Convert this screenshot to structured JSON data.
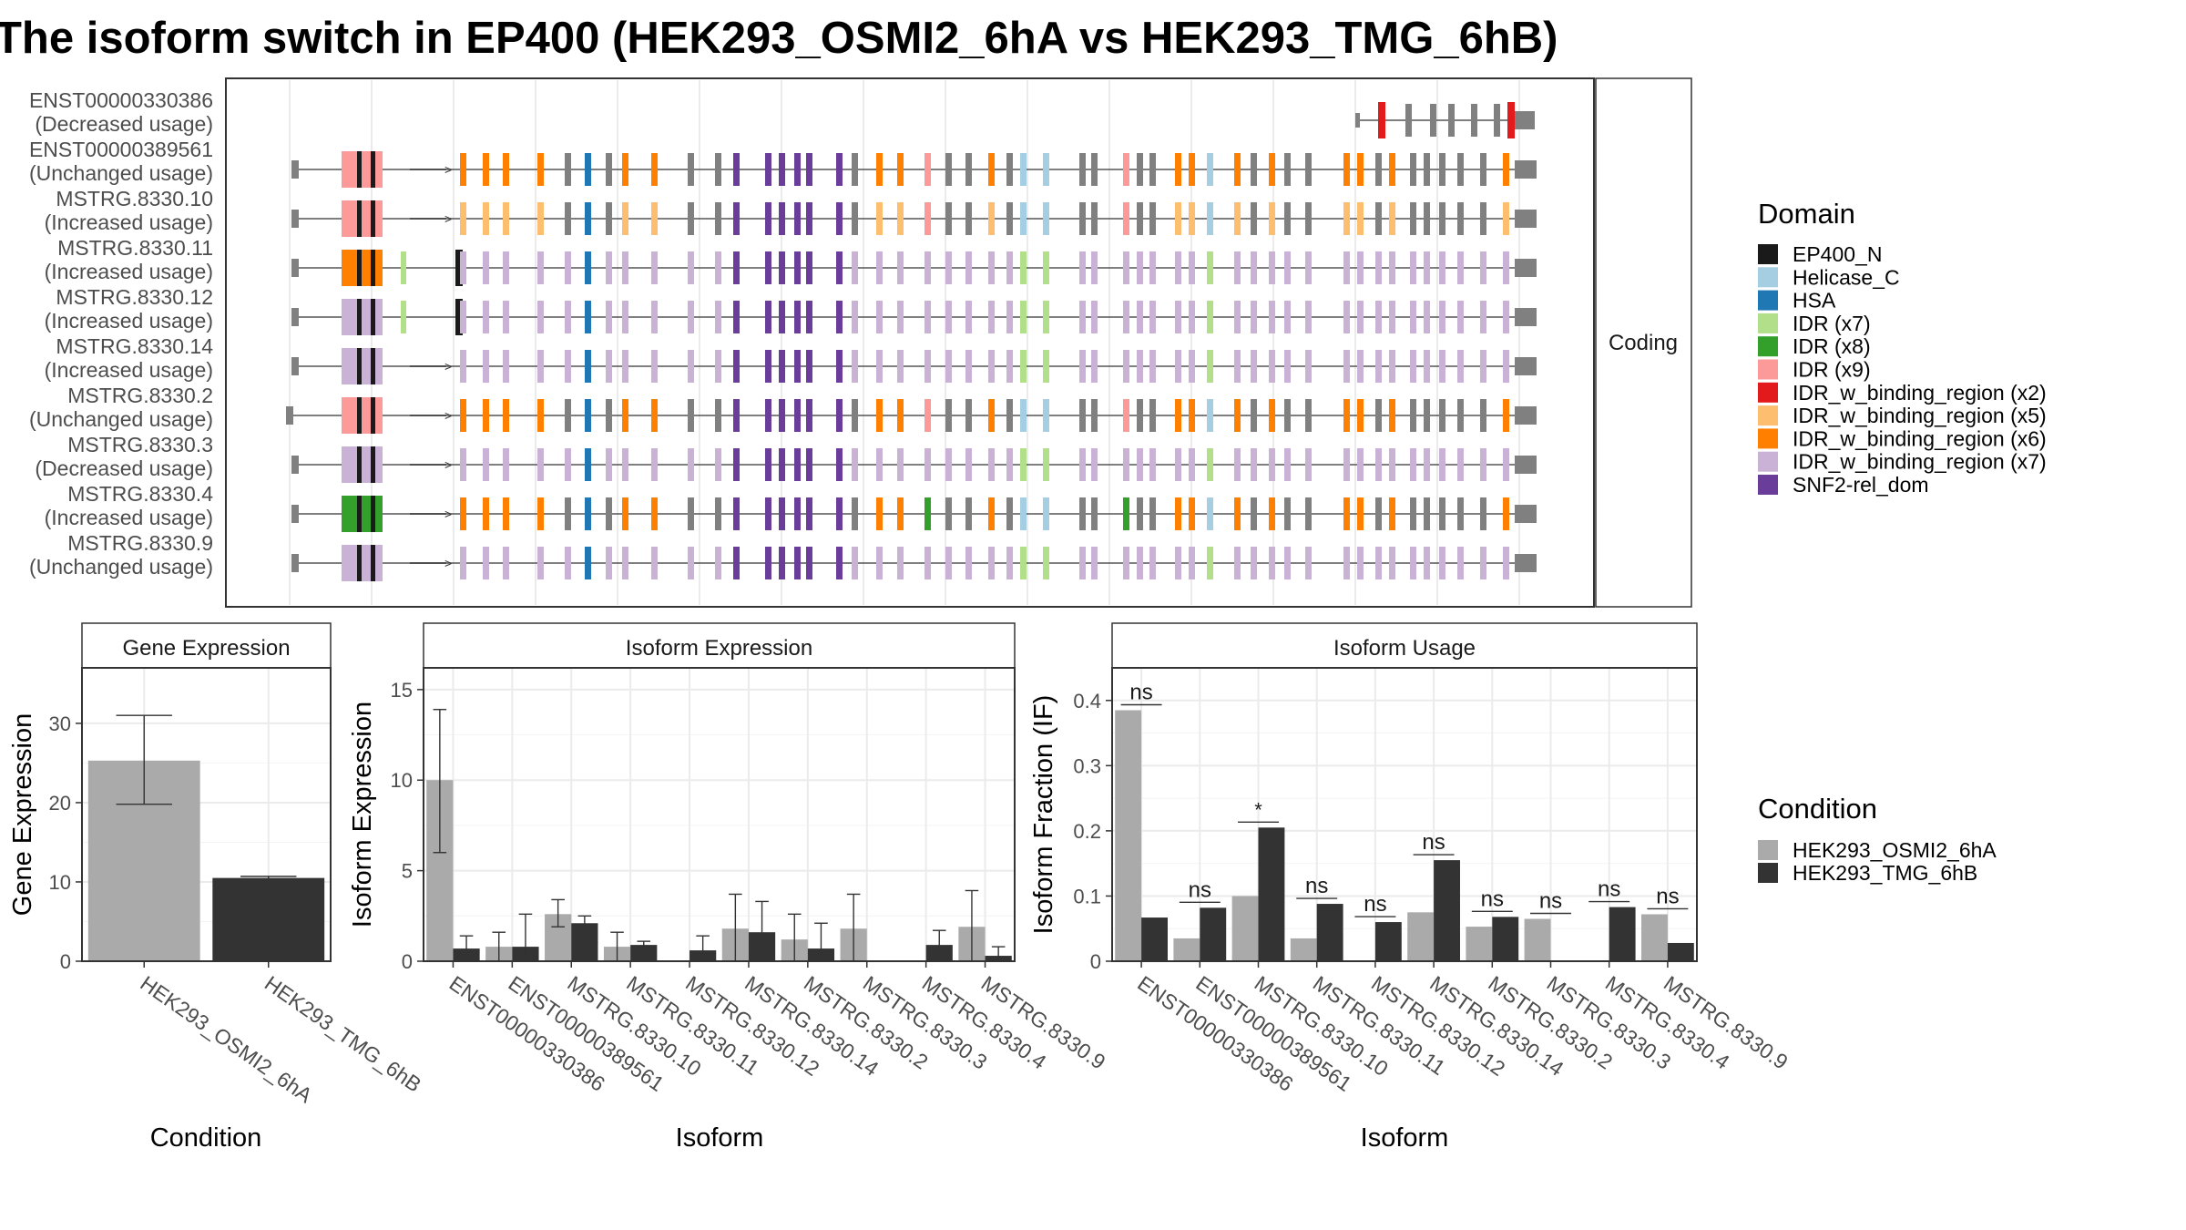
{
  "title": "The isoform switch in EP400 (HEK293_OSMI2_6hA vs HEK293_TMG_6hB)",
  "structure_panel": {
    "strip_label": "Coding",
    "transcripts": [
      {
        "id": "ENST00000330386",
        "usage": "(Decreased usage)"
      },
      {
        "id": "ENST00000389561",
        "usage": "(Unchanged usage)"
      },
      {
        "id": "MSTRG.8330.10",
        "usage": "(Increased usage)"
      },
      {
        "id": "MSTRG.8330.11",
        "usage": "(Increased usage)"
      },
      {
        "id": "MSTRG.8330.12",
        "usage": "(Increased usage)"
      },
      {
        "id": "MSTRG.8330.14",
        "usage": "(Increased usage)"
      },
      {
        "id": "MSTRG.8330.2",
        "usage": "(Unchanged usage)"
      },
      {
        "id": "MSTRG.8330.3",
        "usage": "(Decreased usage)"
      },
      {
        "id": "MSTRG.8330.4",
        "usage": "(Increased usage)"
      },
      {
        "id": "MSTRG.8330.9",
        "usage": "(Unchanged usage)"
      }
    ]
  },
  "domain_legend": {
    "title": "Domain",
    "items": [
      {
        "label": "EP400_N",
        "color": "#1a1a1a"
      },
      {
        "label": "Helicase_C",
        "color": "#a6cee3"
      },
      {
        "label": "HSA",
        "color": "#1f78b4"
      },
      {
        "label": "IDR (x7)",
        "color": "#b2df8a"
      },
      {
        "label": "IDR (x8)",
        "color": "#33a02c"
      },
      {
        "label": "IDR (x9)",
        "color": "#fb9a99"
      },
      {
        "label": "IDR_w_binding_region (x2)",
        "color": "#e31a1c"
      },
      {
        "label": "IDR_w_binding_region (x5)",
        "color": "#fdbf6f"
      },
      {
        "label": "IDR_w_binding_region (x6)",
        "color": "#ff7f00"
      },
      {
        "label": "IDR_w_binding_region (x7)",
        "color": "#cab2d6"
      },
      {
        "label": "SNF2-rel_dom",
        "color": "#6a3d9a"
      }
    ]
  },
  "condition_legend": {
    "title": "Condition",
    "items": [
      {
        "label": "HEK293_OSMI2_6hA",
        "color": "#aaaaaa"
      },
      {
        "label": "HEK293_TMG_6hB",
        "color": "#333333"
      }
    ]
  },
  "chart_data": [
    {
      "type": "bar",
      "title": "Gene Expression",
      "xlabel": "Condition",
      "ylabel": "Gene Expression",
      "ylim": [
        0,
        37
      ],
      "yticks": [
        0,
        10,
        20,
        30
      ],
      "categories": [
        "HEK293_OSMI2_6hA",
        "HEK293_TMG_6hB"
      ],
      "values": [
        25.3,
        10.5
      ],
      "errors": [
        [
          19.8,
          31.0
        ],
        [
          10.3,
          10.7
        ]
      ],
      "colors": [
        "#aaaaaa",
        "#333333"
      ]
    },
    {
      "type": "bar",
      "title": "Isoform Expression",
      "xlabel": "Isoform",
      "ylabel": "Isoform Expression",
      "ylim": [
        0,
        16.2
      ],
      "yticks": [
        0,
        5,
        10,
        15
      ],
      "categories": [
        "ENST00000330386",
        "ENST00000389561",
        "MSTRG.8330.10",
        "MSTRG.8330.11",
        "MSTRG.8330.12",
        "MSTRG.8330.14",
        "MSTRG.8330.2",
        "MSTRG.8330.3",
        "MSTRG.8330.4",
        "MSTRG.8330.9"
      ],
      "series": [
        {
          "name": "HEK293_OSMI2_6hA",
          "values": [
            10.0,
            0.8,
            2.6,
            0.8,
            0.0,
            1.8,
            1.2,
            1.8,
            0.0,
            1.9
          ],
          "errors": [
            [
              6.0,
              13.9
            ],
            [
              0.0,
              1.6
            ],
            [
              1.9,
              3.4
            ],
            [
              0.0,
              1.6
            ],
            null,
            [
              0.0,
              3.7
            ],
            [
              0.0,
              2.6
            ],
            [
              0.0,
              3.7
            ],
            null,
            [
              0.0,
              3.9
            ]
          ]
        },
        {
          "name": "HEK293_TMG_6hB",
          "values": [
            0.7,
            0.8,
            2.1,
            0.9,
            0.6,
            1.6,
            0.7,
            0.0,
            0.9,
            0.3
          ],
          "errors": [
            [
              0.0,
              1.4
            ],
            [
              0.0,
              2.6
            ],
            [
              1.8,
              2.5
            ],
            [
              0.8,
              1.1
            ],
            [
              0.0,
              1.4
            ],
            [
              0.0,
              3.3
            ],
            [
              0.0,
              2.1
            ],
            null,
            [
              0.0,
              1.7
            ],
            [
              0.0,
              0.8
            ]
          ]
        }
      ]
    },
    {
      "type": "bar",
      "title": "Isoform Usage",
      "xlabel": "Isoform",
      "ylabel": "Isoform Fraction (IF)",
      "ylim": [
        0,
        0.45
      ],
      "yticks": [
        0.0,
        0.1,
        0.2,
        0.3,
        0.4
      ],
      "categories": [
        "ENST00000330386",
        "ENST00000389561",
        "MSTRG.8330.10",
        "MSTRG.8330.11",
        "MSTRG.8330.12",
        "MSTRG.8330.14",
        "MSTRG.8330.2",
        "MSTRG.8330.3",
        "MSTRG.8330.4",
        "MSTRG.8330.9"
      ],
      "series": [
        {
          "name": "HEK293_OSMI2_6hA",
          "values": [
            0.385,
            0.035,
            0.1,
            0.035,
            0.0,
            0.075,
            0.053,
            0.065,
            0.0,
            0.072
          ]
        },
        {
          "name": "HEK293_TMG_6hB",
          "values": [
            0.067,
            0.082,
            0.205,
            0.088,
            0.06,
            0.155,
            0.068,
            0.0,
            0.083,
            0.028
          ]
        }
      ],
      "significance": [
        "ns",
        "ns",
        "*",
        "ns",
        "ns",
        "ns",
        "ns",
        "ns",
        "ns",
        "ns"
      ]
    }
  ]
}
